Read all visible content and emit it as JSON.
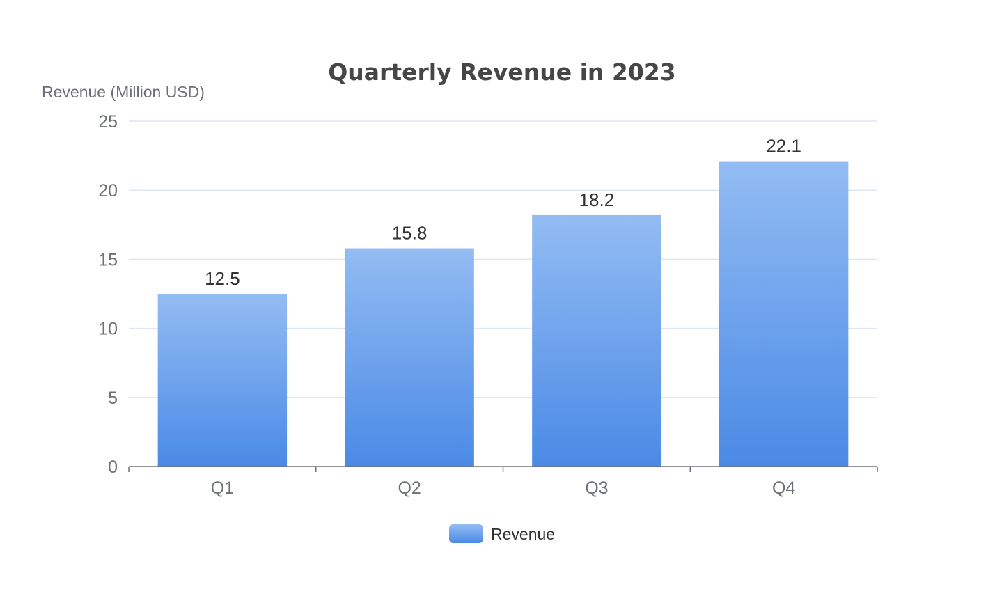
{
  "chart_data": {
    "type": "bar",
    "title": "Quarterly Revenue in 2023",
    "ylabel": "Revenue (Million USD)",
    "xlabel": "",
    "categories": [
      "Q1",
      "Q2",
      "Q3",
      "Q4"
    ],
    "series": [
      {
        "name": "Revenue",
        "values": [
          12.5,
          15.8,
          18.2,
          22.1
        ],
        "value_labels": [
          "12.5",
          "15.8",
          "18.2",
          "22.1"
        ]
      }
    ],
    "ylim": [
      0,
      25
    ],
    "yticks": [
      0,
      5,
      10,
      15,
      20,
      25
    ],
    "ytick_labels": [
      "0",
      "5",
      "10",
      "15",
      "20",
      "25"
    ],
    "grid": true,
    "legend_position": "bottom-center",
    "colors": {
      "bar_top": "#93bcf3",
      "bar_bottom": "#4a8ae6",
      "grid": "#e0e6f1",
      "axis": "#6e7079"
    }
  }
}
